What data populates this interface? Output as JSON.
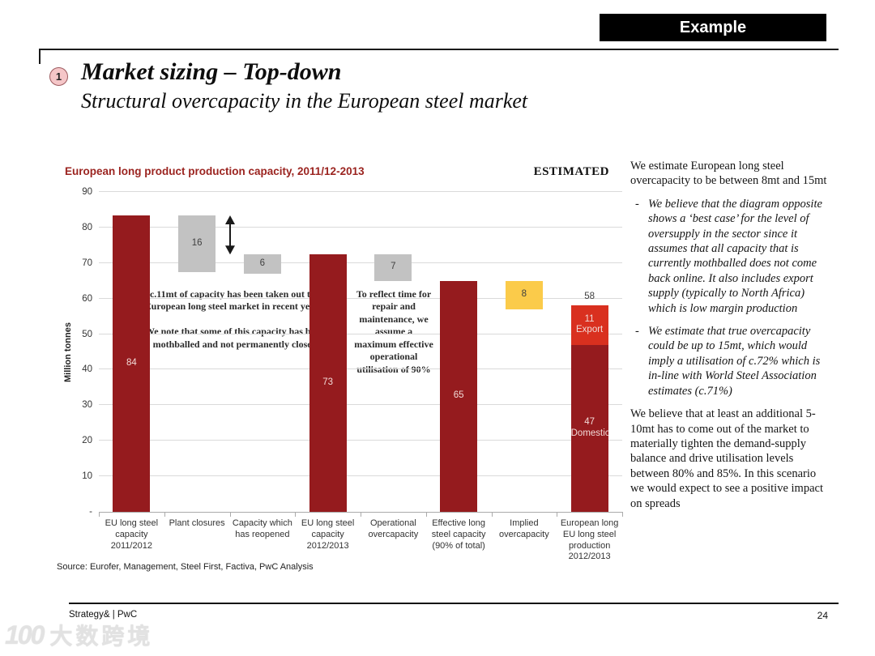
{
  "header": {
    "badge": "Example",
    "number": "1",
    "title": "Market sizing – Top-down",
    "subtitle": "Structural overcapacity in the European steel market"
  },
  "chart_data": {
    "type": "bar",
    "variant": "waterfall",
    "title": "European long product production capacity, 2011/12-2013",
    "tag": "ESTIMATED",
    "ylabel": "Million tonnes",
    "ylim": [
      0,
      90
    ],
    "yticks": [
      90,
      80,
      70,
      60,
      50,
      40,
      30,
      20,
      10
    ],
    "zero_tick_label": "-",
    "grid": "horizontal",
    "colors": {
      "dark_red": "#951b1e",
      "bright_red": "#d9301f",
      "gray": "#c2c2c2",
      "yellow": "#fbcb4a",
      "label_light": "#f2dbd8",
      "label_dark": "#3f3f3f",
      "gridline": "#dadada",
      "title_red": "#9b2420"
    },
    "categories": [
      "EU long steel\ncapacity\n2011/2012",
      "Plant closures",
      "Capacity which\nhas reopened",
      "EU long steel\ncapacity\n2012/2013",
      "Operational\novercapacity",
      "Effective long\nsteel capacity\n(90% of total)",
      "Implied\novercapacity",
      "European long\nEU long steel\nproduction\n2012/2013"
    ],
    "bars": [
      {
        "col": 0,
        "value": 84,
        "label": "84",
        "from": 0,
        "to": 83.5,
        "color": "dark_red",
        "label_color": "light"
      },
      {
        "col": 1,
        "value": 16,
        "label": "16",
        "from": 67.5,
        "to": 83.5,
        "color": "gray",
        "label_color": "dark"
      },
      {
        "col": 2,
        "value": 6,
        "label": "6",
        "from": 67,
        "to": 72.5,
        "color": "gray",
        "label_color": "dark"
      },
      {
        "col": 3,
        "value": 73,
        "label": "73",
        "from": 0,
        "to": 72.5,
        "color": "dark_red",
        "label_color": "light"
      },
      {
        "col": 4,
        "value": 7,
        "label": "7",
        "from": 65,
        "to": 72.5,
        "color": "gray",
        "label_color": "dark"
      },
      {
        "col": 5,
        "value": 65,
        "label": "65",
        "from": 0,
        "to": 65,
        "color": "dark_red",
        "label_color": "light"
      },
      {
        "col": 6,
        "value": 8,
        "label": "8",
        "from": 57,
        "to": 65,
        "color": "yellow",
        "label_color": "dark"
      },
      {
        "col": 7,
        "value": 47,
        "label": "47\nDomestic",
        "from": 0,
        "to": 47,
        "color": "dark_red",
        "label_color": "light"
      },
      {
        "col": 7,
        "value": 11,
        "label": "11\nExport",
        "from": 47,
        "to": 58,
        "color": "bright_red",
        "label_color": "light"
      }
    ],
    "total_label": {
      "col": 7,
      "text": "58",
      "value": 58
    },
    "arrow": {
      "at_boundary_after_col": 1,
      "from": 83.5,
      "to": 72.5
    },
    "annotations": [
      {
        "text": "c.11mt of capacity has been taken out the European long steel market in recent years.\n\nWe note that some of this capacity has been mothballed and not permanently closed"
      },
      {
        "text": "To reflect time for repair and maintenance, we assume a maximum effective operational utilisation of 90%"
      }
    ],
    "source": "Source: Eurofer, Management, Steel First, Factiva, PwC Analysis"
  },
  "side_panel": {
    "para1": "We estimate European long steel overcapacity to be between 8mt and 15mt",
    "bullets": [
      {
        "marker": "-",
        "text": "We believe that the diagram opposite shows a ‘best case’ for the level of oversupply in the sector since it assumes that all capacity that is currently mothballed does not come back online. It also includes export supply (typically to North Africa) which is low margin production"
      },
      {
        "marker": "-",
        "text": "We estimate that true overcapacity could be up to 15mt, which would imply a utilisation of c.72% which is in-line with World Steel Association estimates (c.71%)"
      }
    ],
    "para2": "We believe that at least an additional 5-10mt has to come out of the market to materially tighten the demand-supply balance and drive utilisation levels between 80% and 85%. In this scenario we would expect to see a positive impact on spreads"
  },
  "footer": {
    "brand": "Strategy& | PwC",
    "page": "24"
  },
  "watermark": {
    "logo": "100",
    "text": "大数跨境"
  }
}
